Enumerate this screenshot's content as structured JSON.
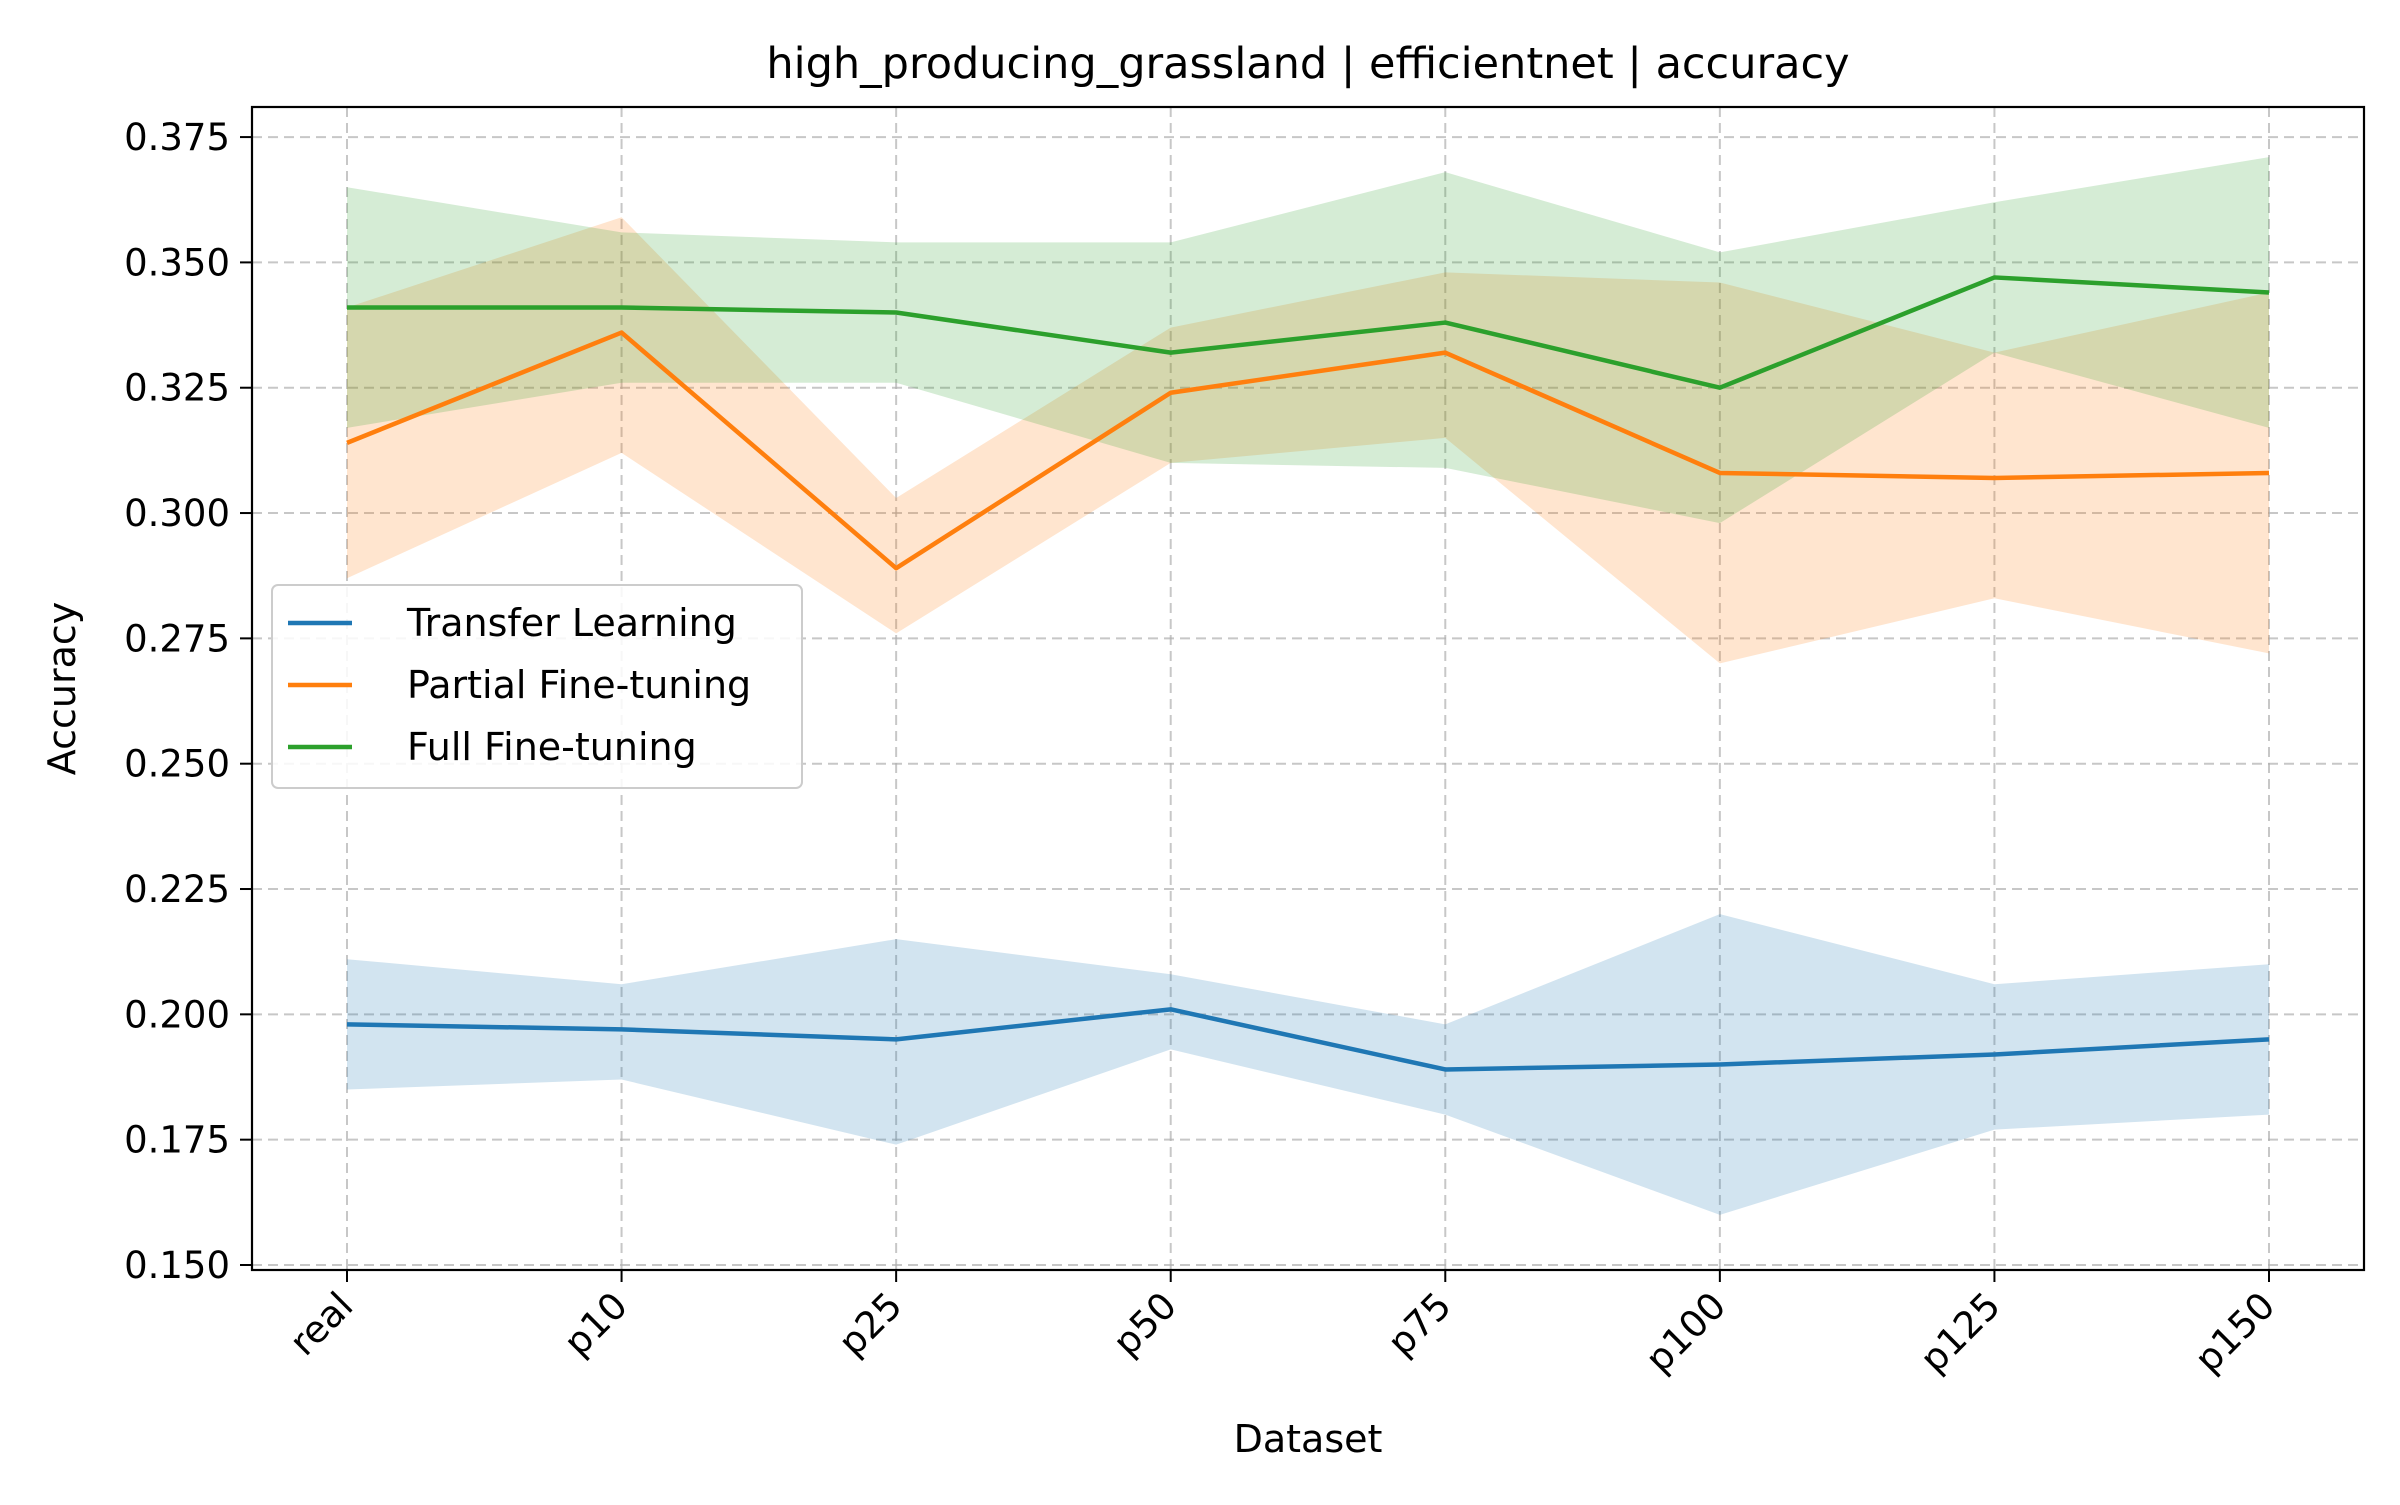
{
  "chart_data": {
    "type": "line",
    "title": "high_producing_grassland | efficientnet | accuracy",
    "xlabel": "Dataset",
    "ylabel": "Accuracy",
    "categories": [
      "real",
      "p10",
      "p25",
      "p50",
      "p75",
      "p100",
      "p125",
      "p150"
    ],
    "ylim": [
      0.149,
      0.381
    ],
    "yticks": [
      0.15,
      0.175,
      0.2,
      0.225,
      0.25,
      0.275,
      0.3,
      0.325,
      0.35,
      0.375
    ],
    "ytick_labels": [
      "0.150",
      "0.175",
      "0.200",
      "0.225",
      "0.250",
      "0.275",
      "0.300",
      "0.325",
      "0.350",
      "0.375"
    ],
    "grid": true,
    "legend_position": "center-left",
    "series": [
      {
        "name": "Transfer Learning",
        "color": "#1f77b4",
        "values": [
          0.198,
          0.197,
          0.195,
          0.201,
          0.189,
          0.19,
          0.192,
          0.195
        ],
        "lower": [
          0.185,
          0.187,
          0.174,
          0.193,
          0.18,
          0.16,
          0.177,
          0.18
        ],
        "upper": [
          0.211,
          0.206,
          0.215,
          0.208,
          0.198,
          0.22,
          0.206,
          0.21
        ]
      },
      {
        "name": "Partial Fine-tuning",
        "color": "#ff7f0e",
        "values": [
          0.314,
          0.336,
          0.289,
          0.324,
          0.332,
          0.308,
          0.307,
          0.308
        ],
        "lower": [
          0.287,
          0.312,
          0.276,
          0.31,
          0.315,
          0.27,
          0.283,
          0.272
        ],
        "upper": [
          0.341,
          0.359,
          0.303,
          0.337,
          0.348,
          0.346,
          0.332,
          0.344
        ]
      },
      {
        "name": "Full Fine-tuning",
        "color": "#2ca02c",
        "values": [
          0.341,
          0.341,
          0.34,
          0.332,
          0.338,
          0.325,
          0.347,
          0.344
        ],
        "lower": [
          0.317,
          0.326,
          0.326,
          0.31,
          0.309,
          0.298,
          0.332,
          0.317
        ],
        "upper": [
          0.365,
          0.356,
          0.354,
          0.354,
          0.368,
          0.352,
          0.362,
          0.371
        ]
      }
    ]
  }
}
